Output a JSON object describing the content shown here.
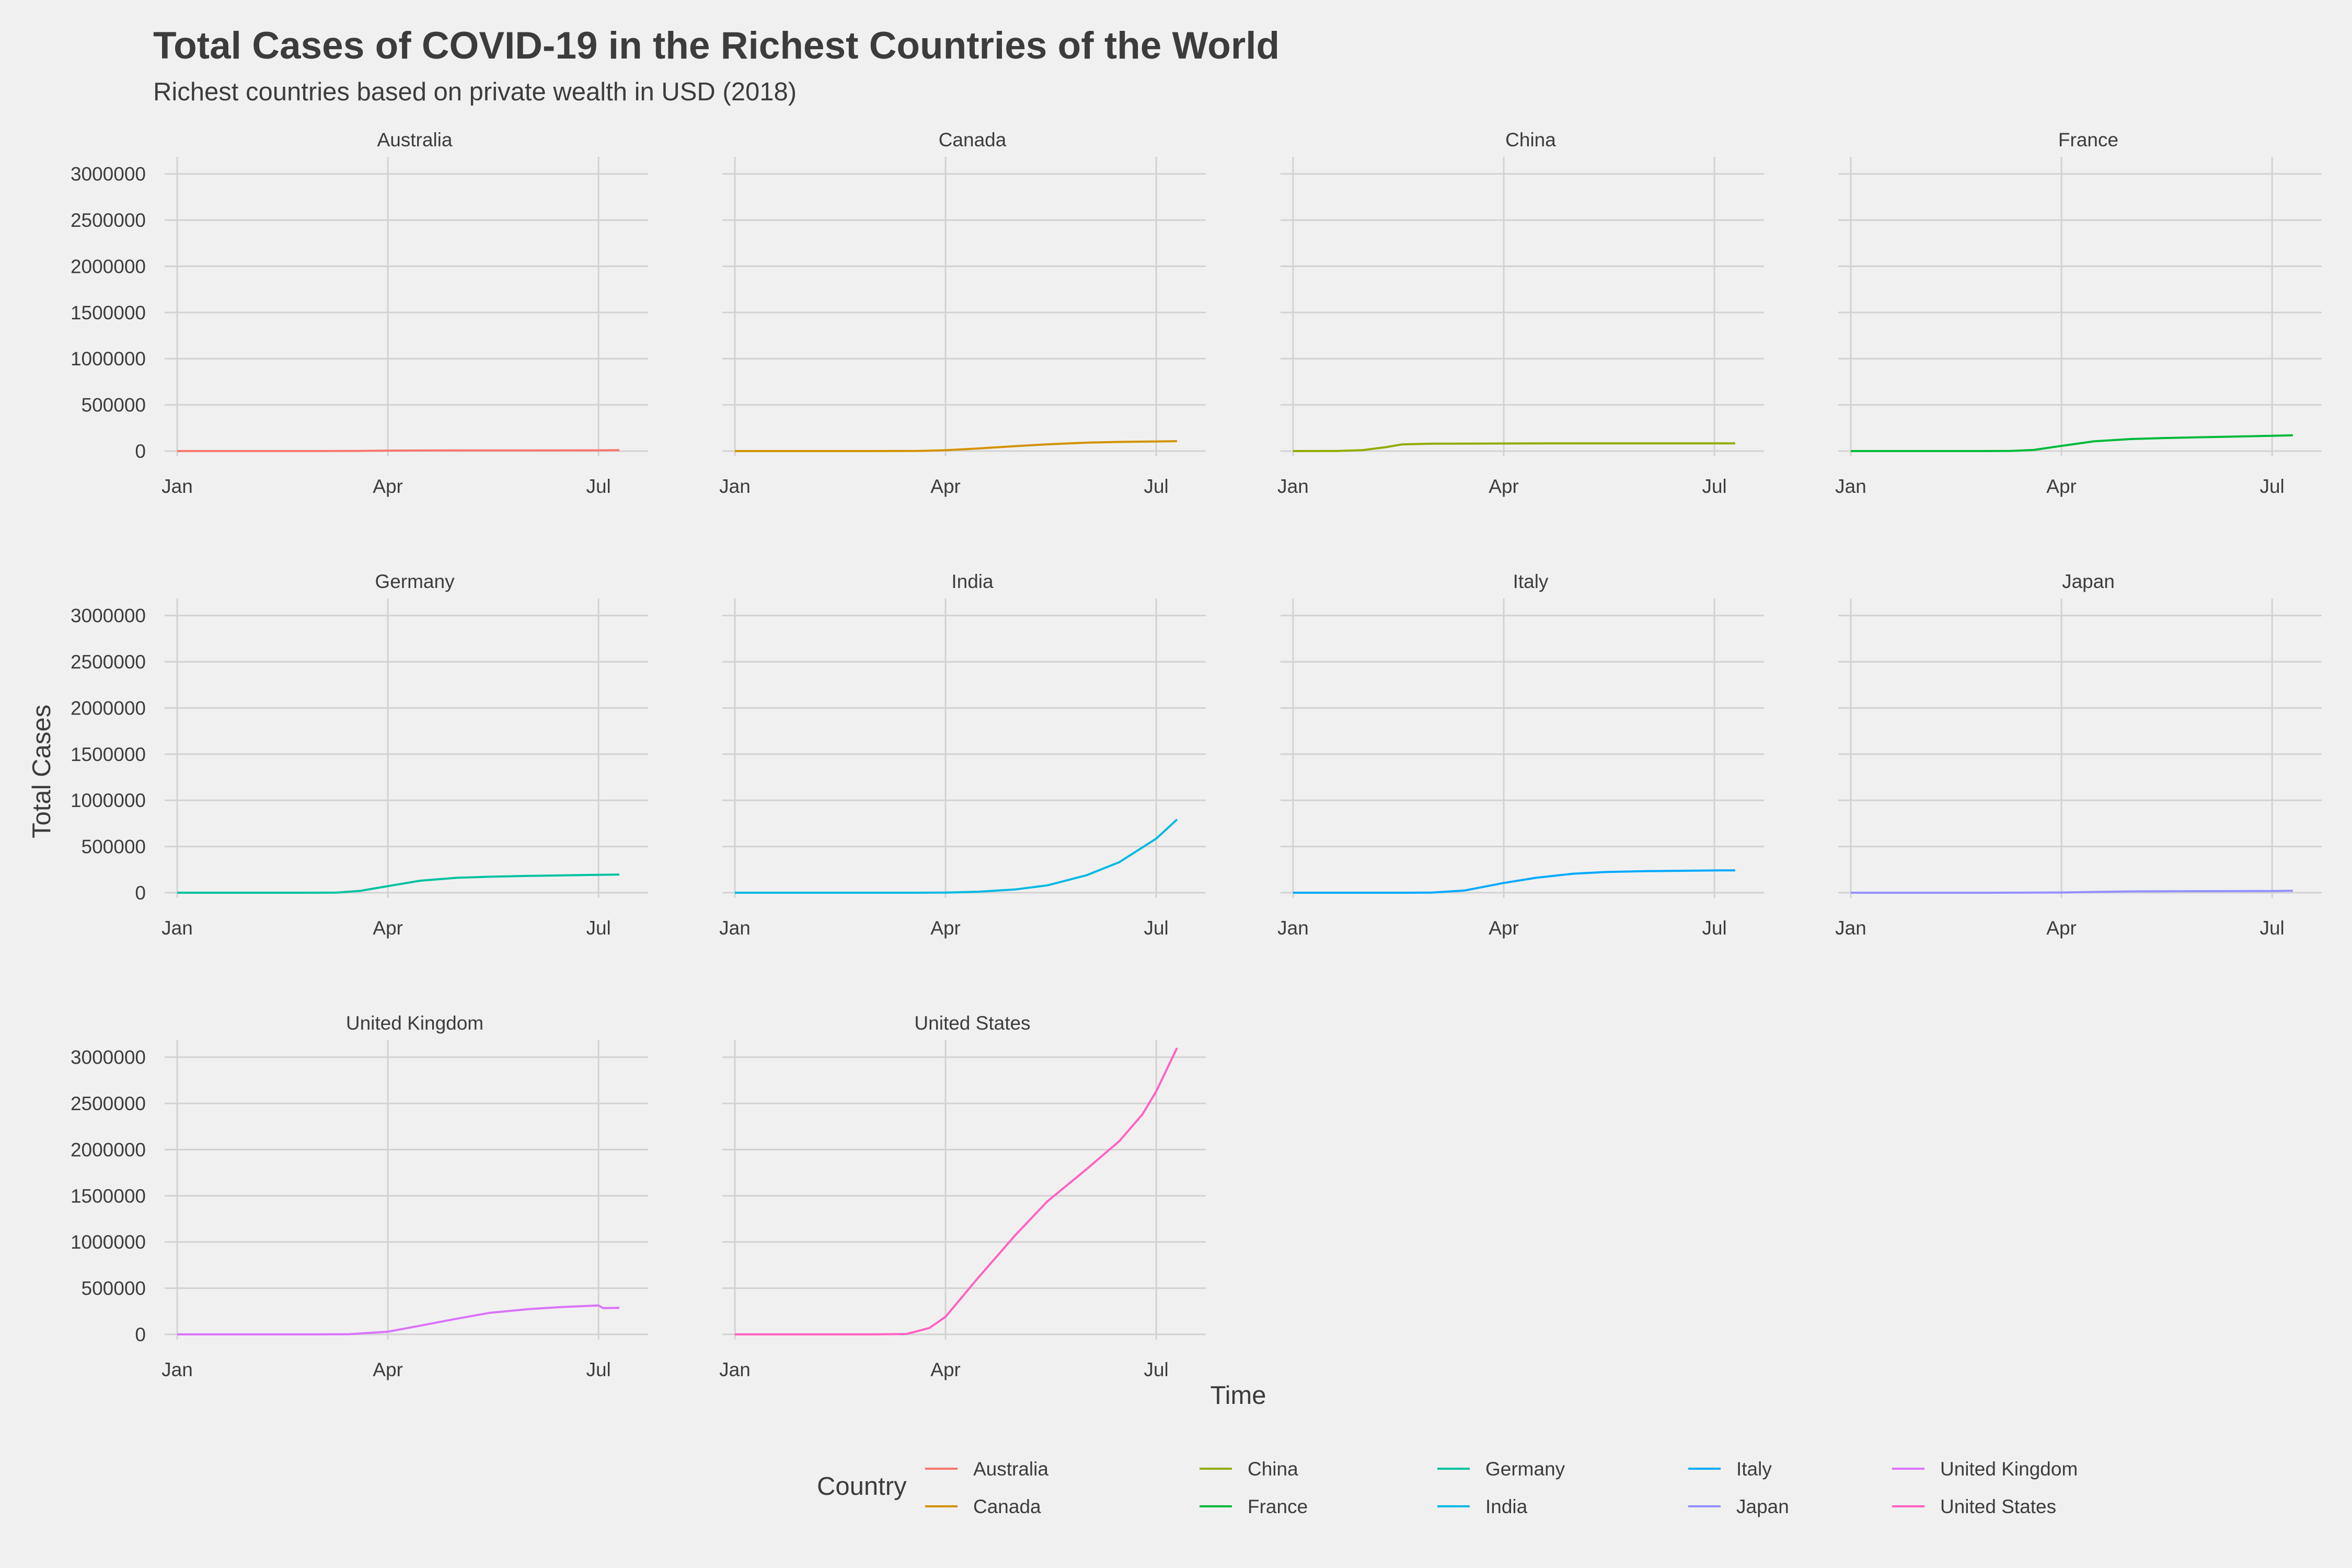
{
  "chart_data": {
    "type": "line",
    "title": "Total Cases of COVID-19 in the Richest Countries of the World",
    "subtitle": "Richest countries based on private wealth in USD (2018)",
    "xlabel": "Time",
    "ylabel": "Total Cases",
    "x_ticks": [
      "Jan",
      "Apr",
      "Jul"
    ],
    "y_ticks": [
      "0",
      "500000",
      "1000000",
      "1500000",
      "2000000",
      "2500000",
      "3000000"
    ],
    "y_tick_values": [
      0,
      500000,
      1000000,
      1500000,
      2000000,
      2500000,
      3000000
    ],
    "ylim": [
      0,
      3100000
    ],
    "xlim": [
      "2020-01-01",
      "2020-07-10"
    ],
    "grid": true,
    "legend": {
      "title": "Country",
      "position": "bottom"
    },
    "series": [
      {
        "name": "Australia",
        "color": "#F8766D",
        "points": [
          [
            "2020-01-01",
            0
          ],
          [
            "2020-03-01",
            30
          ],
          [
            "2020-03-20",
            900
          ],
          [
            "2020-04-01",
            5000
          ],
          [
            "2020-05-01",
            6800
          ],
          [
            "2020-06-01",
            7200
          ],
          [
            "2020-07-01",
            8000
          ],
          [
            "2020-07-10",
            9500
          ]
        ]
      },
      {
        "name": "Canada",
        "color": "#D39200",
        "points": [
          [
            "2020-01-01",
            0
          ],
          [
            "2020-03-01",
            30
          ],
          [
            "2020-03-20",
            1000
          ],
          [
            "2020-04-01",
            9000
          ],
          [
            "2020-04-15",
            28000
          ],
          [
            "2020-05-01",
            53000
          ],
          [
            "2020-05-15",
            73000
          ],
          [
            "2020-06-01",
            91000
          ],
          [
            "2020-06-15",
            99000
          ],
          [
            "2020-07-01",
            104000
          ],
          [
            "2020-07-10",
            107000
          ]
        ]
      },
      {
        "name": "China",
        "color": "#93AA00",
        "points": [
          [
            "2020-01-01",
            0
          ],
          [
            "2020-01-20",
            300
          ],
          [
            "2020-01-31",
            10000
          ],
          [
            "2020-02-10",
            42000
          ],
          [
            "2020-02-17",
            72000
          ],
          [
            "2020-03-01",
            80000
          ],
          [
            "2020-04-01",
            82000
          ],
          [
            "2020-05-01",
            83000
          ],
          [
            "2020-06-01",
            83000
          ],
          [
            "2020-06-20",
            84000
          ],
          [
            "2020-07-10",
            84000
          ]
        ]
      },
      {
        "name": "France",
        "color": "#00BA38",
        "points": [
          [
            "2020-01-01",
            0
          ],
          [
            "2020-02-25",
            14
          ],
          [
            "2020-03-10",
            1800
          ],
          [
            "2020-03-20",
            12000
          ],
          [
            "2020-04-01",
            56000
          ],
          [
            "2020-04-15",
            105000
          ],
          [
            "2020-05-01",
            130000
          ],
          [
            "2020-05-15",
            141000
          ],
          [
            "2020-06-01",
            150000
          ],
          [
            "2020-06-15",
            157000
          ],
          [
            "2020-07-01",
            165000
          ],
          [
            "2020-07-10",
            170000
          ]
        ]
      },
      {
        "name": "Germany",
        "color": "#00C19F",
        "points": [
          [
            "2020-01-01",
            0
          ],
          [
            "2020-02-25",
            16
          ],
          [
            "2020-03-10",
            1400
          ],
          [
            "2020-03-20",
            20000
          ],
          [
            "2020-04-01",
            71000
          ],
          [
            "2020-04-15",
            130000
          ],
          [
            "2020-05-01",
            162000
          ],
          [
            "2020-05-15",
            173000
          ],
          [
            "2020-06-01",
            182000
          ],
          [
            "2020-06-15",
            187000
          ],
          [
            "2020-07-01",
            194000
          ],
          [
            "2020-07-10",
            197000
          ]
        ]
      },
      {
        "name": "India",
        "color": "#00B9E3",
        "points": [
          [
            "2020-01-01",
            0
          ],
          [
            "2020-03-01",
            3
          ],
          [
            "2020-03-20",
            200
          ],
          [
            "2020-04-01",
            1600
          ],
          [
            "2020-04-15",
            11000
          ],
          [
            "2020-05-01",
            35000
          ],
          [
            "2020-05-15",
            80000
          ],
          [
            "2020-06-01",
            190000
          ],
          [
            "2020-06-15",
            330000
          ],
          [
            "2020-07-01",
            585000
          ],
          [
            "2020-07-10",
            793000
          ]
        ]
      },
      {
        "name": "Italy",
        "color": "#00A9FF",
        "points": [
          [
            "2020-01-01",
            0
          ],
          [
            "2020-02-20",
            3
          ],
          [
            "2020-03-01",
            1700
          ],
          [
            "2020-03-15",
            24000
          ],
          [
            "2020-04-01",
            106000
          ],
          [
            "2020-04-15",
            162000
          ],
          [
            "2020-05-01",
            206000
          ],
          [
            "2020-05-15",
            224000
          ],
          [
            "2020-06-01",
            233000
          ],
          [
            "2020-06-15",
            237000
          ],
          [
            "2020-07-01",
            241000
          ],
          [
            "2020-07-10",
            242000
          ]
        ]
      },
      {
        "name": "Japan",
        "color": "#9590FF",
        "points": [
          [
            "2020-01-01",
            0
          ],
          [
            "2020-02-15",
            40
          ],
          [
            "2020-03-01",
            250
          ],
          [
            "2020-04-01",
            2200
          ],
          [
            "2020-04-15",
            8600
          ],
          [
            "2020-05-01",
            14300
          ],
          [
            "2020-05-15",
            16100
          ],
          [
            "2020-06-01",
            16900
          ],
          [
            "2020-07-01",
            18900
          ],
          [
            "2020-07-10",
            21000
          ]
        ]
      },
      {
        "name": "United Kingdom",
        "color": "#DB72FB",
        "points": [
          [
            "2020-01-01",
            0
          ],
          [
            "2020-03-01",
            35
          ],
          [
            "2020-03-15",
            1100
          ],
          [
            "2020-04-01",
            29000
          ],
          [
            "2020-04-15",
            94000
          ],
          [
            "2020-05-01",
            171000
          ],
          [
            "2020-05-15",
            233000
          ],
          [
            "2020-06-01",
            274000
          ],
          [
            "2020-06-15",
            296000
          ],
          [
            "2020-07-01",
            313000
          ],
          [
            "2020-07-03",
            284000
          ],
          [
            "2020-07-10",
            287000
          ]
        ]
      },
      {
        "name": "United States",
        "color": "#FF61C3",
        "points": [
          [
            "2020-01-01",
            0
          ],
          [
            "2020-03-01",
            70
          ],
          [
            "2020-03-15",
            3500
          ],
          [
            "2020-03-25",
            69000
          ],
          [
            "2020-04-01",
            190000
          ],
          [
            "2020-04-15",
            610000
          ],
          [
            "2020-05-01",
            1070000
          ],
          [
            "2020-05-15",
            1440000
          ],
          [
            "2020-06-01",
            1790000
          ],
          [
            "2020-06-15",
            2090000
          ],
          [
            "2020-06-25",
            2380000
          ],
          [
            "2020-07-01",
            2630000
          ],
          [
            "2020-07-10",
            3100000
          ]
        ]
      }
    ]
  }
}
